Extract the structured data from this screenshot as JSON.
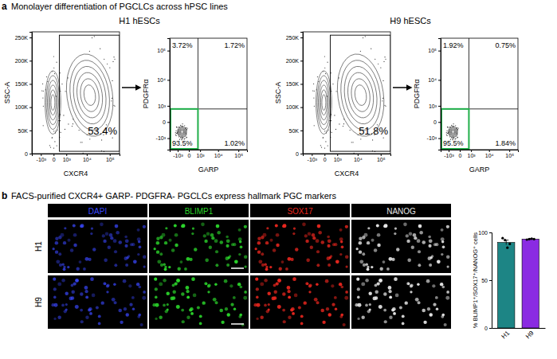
{
  "figure": {
    "panel_a": {
      "letter": "a",
      "title": "Monolayer differentiation of PGCLCs across hPSC lines",
      "groups": [
        {
          "title": "H1 hESCs",
          "gate_plot": {
            "x_label": "CXCR4",
            "y_label": "SSC-A",
            "xlim": [
              -3000,
              262144
            ],
            "ylim": [
              0,
              262144
            ],
            "xticks": [
              {
                "value": -1000,
                "label": "-10³"
              },
              0,
              {
                "value": 1000,
                "label": "10³"
              },
              {
                "value": 10000,
                "label": "10⁴"
              },
              {
                "value": 100000,
                "label": "10⁵"
              }
            ],
            "yticks": [
              0,
              {
                "value": 50000,
                "label": "50K"
              },
              {
                "value": 100000,
                "label": "100K"
              },
              {
                "value": 150000,
                "label": "150K"
              },
              {
                "value": 200000,
                "label": "200K"
              },
              {
                "value": 250000,
                "label": "250K"
              }
            ],
            "gate": {
              "x": [
                300,
                262144
              ],
              "y": [
                5000,
                255000
              ]
            },
            "gate_label": "53.4%"
          },
          "quadrant_plot": {
            "x_label": "GARP",
            "y_label": "PDGFRα",
            "xlim": [
              -3000,
              262144
            ],
            "ylim": [
              -3000,
              262144
            ],
            "xticks": [
              {
                "value": -1000,
                "label": "-10³"
              },
              0,
              {
                "value": 1000,
                "label": "10³"
              },
              {
                "value": 10000,
                "label": "10⁴"
              },
              {
                "value": 100000,
                "label": "10⁵"
              }
            ],
            "yticks": [
              {
                "value": -1000,
                "label": "-10³"
              },
              0,
              {
                "value": 1000,
                "label": "10³"
              },
              {
                "value": 10000,
                "label": "10⁴"
              },
              {
                "value": 100000,
                "label": "10⁵"
              }
            ],
            "quadrant_x": 700,
            "quadrant_y": 700,
            "gate": {
              "x": [
                -3000,
                700
              ],
              "y": [
                -3000,
                700
              ]
            },
            "quadrant_labels": [
              "3.72%",
              "1.72%",
              "93.5%",
              "1.02%"
            ]
          }
        },
        {
          "title": "H9 hESCs",
          "gate_plot": {
            "x_label": "CXCR4",
            "y_label": "SSC-A",
            "xlim": [
              -3000,
              262144
            ],
            "ylim": [
              0,
              262144
            ],
            "xticks": [
              {
                "value": -1000,
                "label": "-10³"
              },
              0,
              {
                "value": 1000,
                "label": "10³"
              },
              {
                "value": 10000,
                "label": "10⁴"
              },
              {
                "value": 100000,
                "label": "10⁵"
              }
            ],
            "yticks": [
              0,
              {
                "value": 50000,
                "label": "50K"
              },
              {
                "value": 100000,
                "label": "100K"
              },
              {
                "value": 150000,
                "label": "150K"
              },
              {
                "value": 200000,
                "label": "200K"
              },
              {
                "value": 250000,
                "label": "250K"
              }
            ],
            "gate": {
              "x": [
                300,
                262144
              ],
              "y": [
                5000,
                255000
              ]
            },
            "gate_label": "51.8%"
          },
          "quadrant_plot": {
            "x_label": "GARP",
            "y_label": "PDGFRα",
            "xlim": [
              -3000,
              262144
            ],
            "ylim": [
              -3000,
              262144
            ],
            "xticks": [
              {
                "value": -1000,
                "label": "-10³"
              },
              0,
              {
                "value": 1000,
                "label": "10³"
              },
              {
                "value": 10000,
                "label": "10⁴"
              },
              {
                "value": 100000,
                "label": "10⁵"
              }
            ],
            "yticks": [
              {
                "value": -1000,
                "label": "-10³"
              },
              0,
              {
                "value": 1000,
                "label": "10³"
              },
              {
                "value": 10000,
                "label": "10⁴"
              },
              {
                "value": 100000,
                "label": "10⁵"
              }
            ],
            "quadrant_x": 700,
            "quadrant_y": 700,
            "gate": {
              "x": [
                -3000,
                700
              ],
              "y": [
                -3000,
                700
              ]
            },
            "quadrant_labels": [
              "1.92%",
              "0.75%",
              "95.5%",
              "1.84%"
            ]
          }
        }
      ]
    },
    "panel_b": {
      "letter": "b",
      "title": "FACS-purified CXCR4+ GARP- PDGFRA- PGCLCs express hallmark PGC markers",
      "channels": [
        {
          "name": "DAPI",
          "color": "#3a48ff"
        },
        {
          "name": "BLIMP1",
          "color": "#2bd42b"
        },
        {
          "name": "SOX17",
          "color": "#e8261e"
        },
        {
          "name": "NANOG",
          "color": "#e6e6e6"
        }
      ],
      "rows": [
        "H1",
        "H9"
      ]
    }
  },
  "chart_data": {
    "type": "bar",
    "categories": [
      "H1",
      "H9"
    ],
    "values": [
      89.5,
      93.0
    ],
    "errors": [
      2.4,
      0.6
    ],
    "points": [
      [
        94,
        92,
        84,
        88
      ],
      [
        92.5,
        93,
        93.5,
        93
      ]
    ],
    "colors": [
      "#1d8585",
      "#8a2be2"
    ],
    "ylim": [
      0,
      100
    ],
    "yticks": [
      0,
      50,
      100
    ],
    "y_label": "% BLIMP1⁺/SOX17⁺/NANOG⁺ cells"
  }
}
